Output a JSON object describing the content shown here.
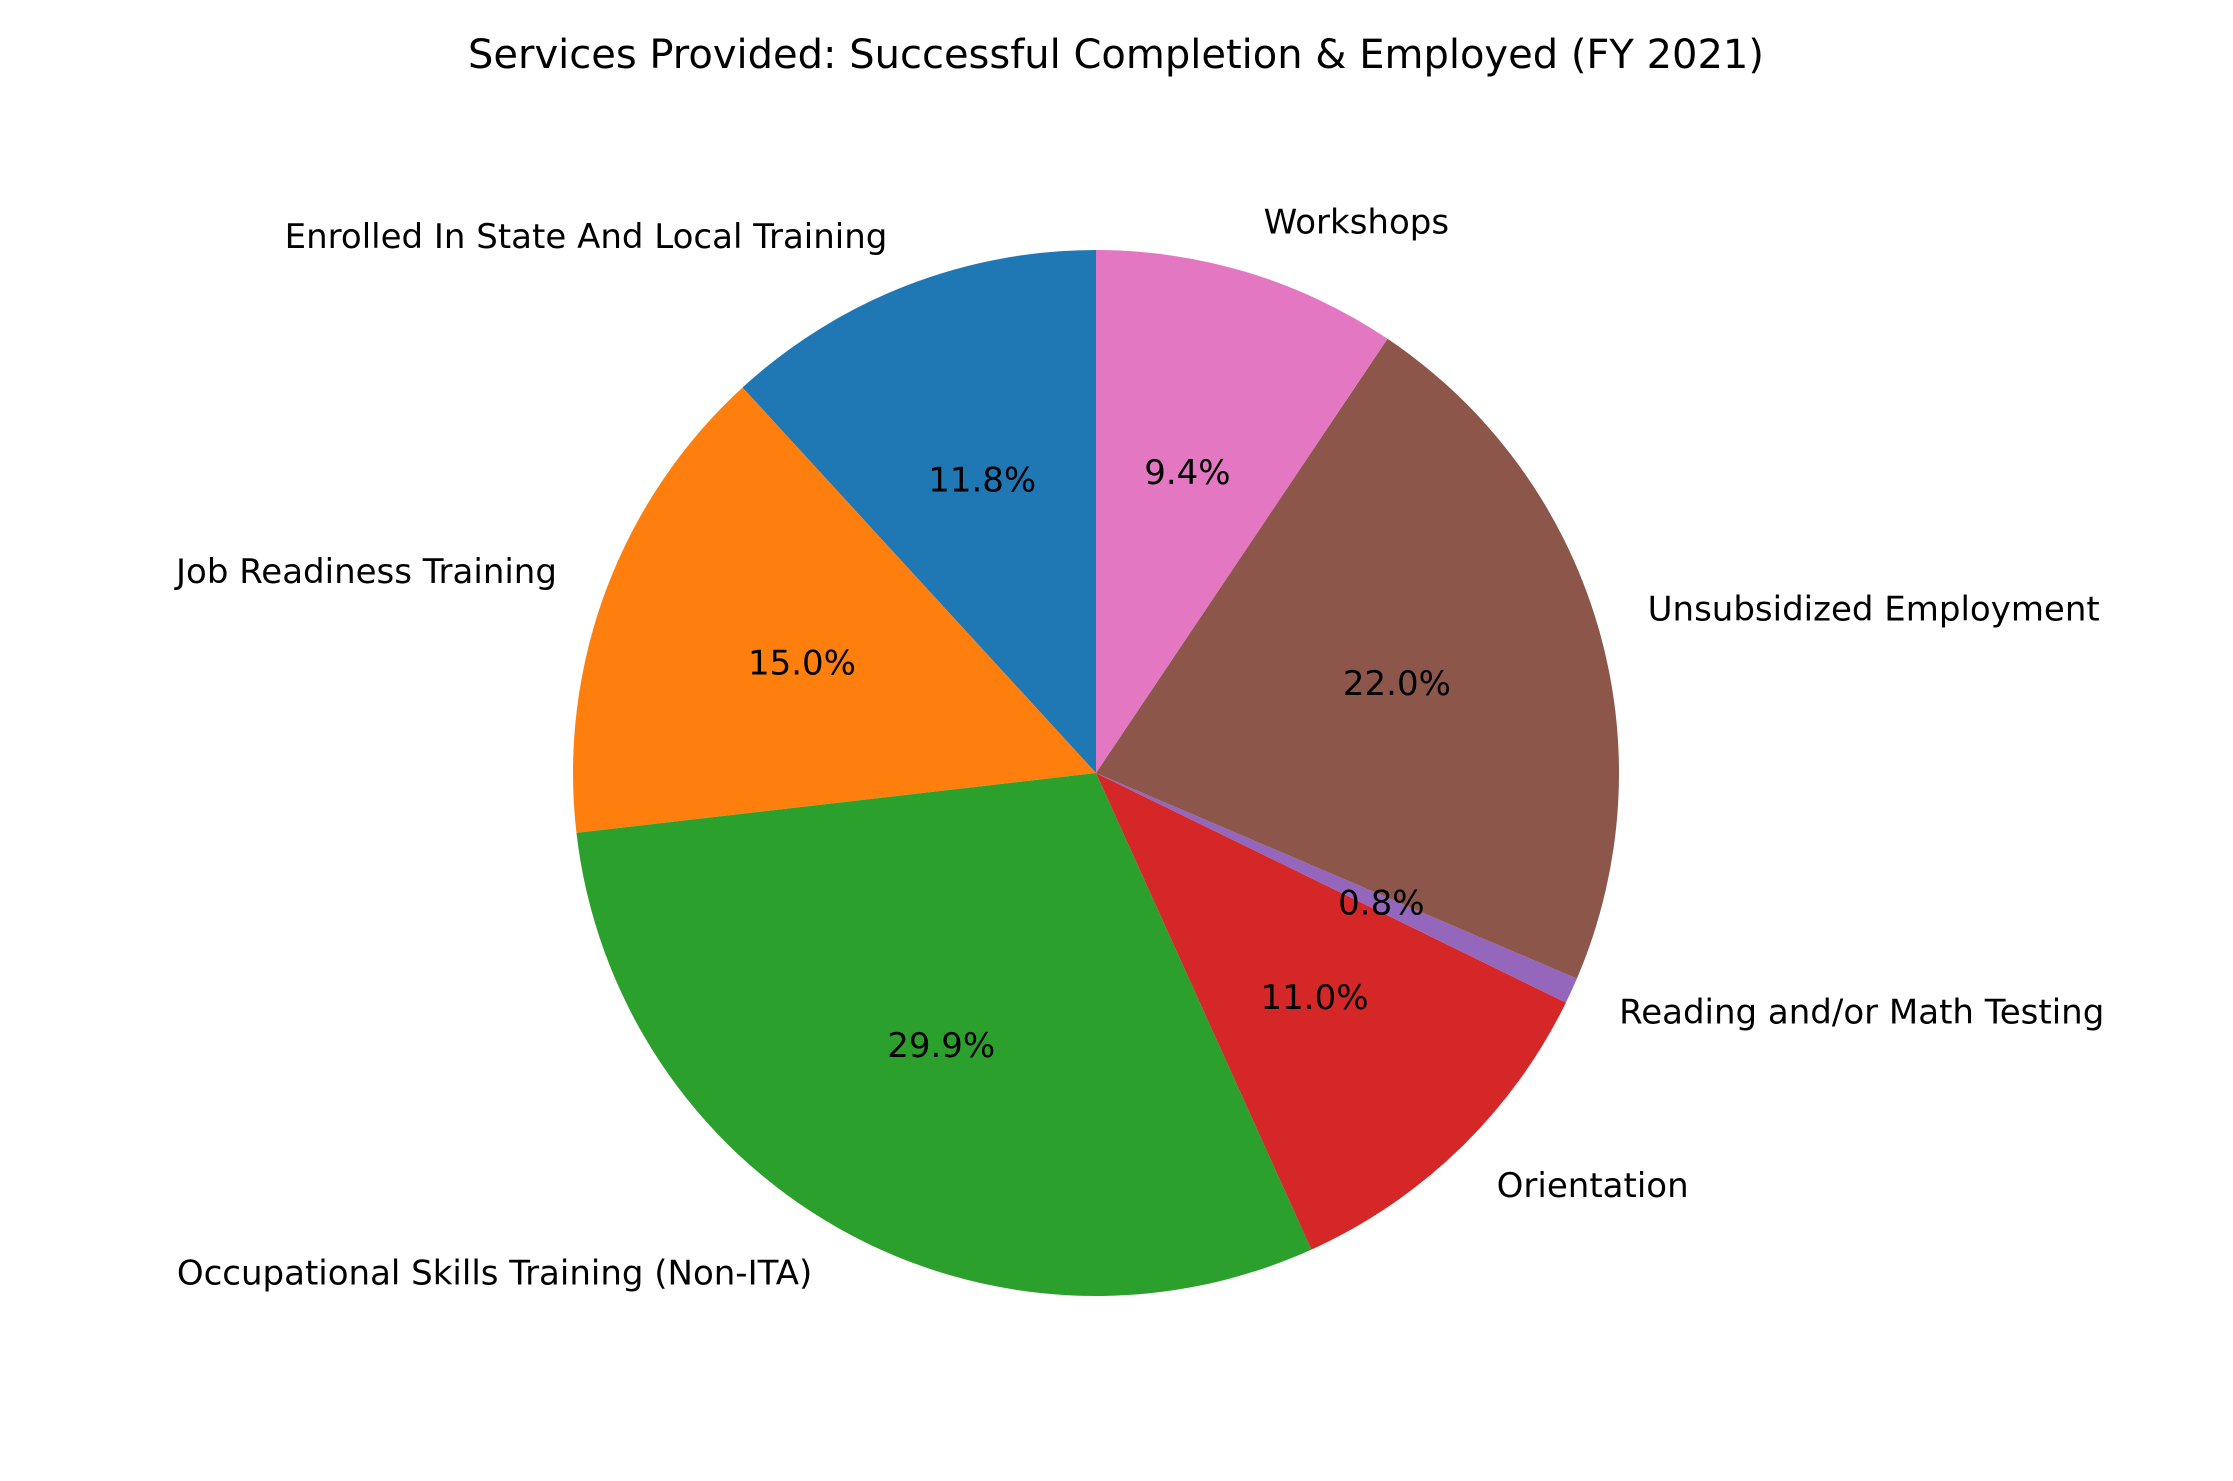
{
  "chart_data": {
    "type": "pie",
    "title": "Services Provided: Successful Completion & Employed (FY 2021)",
    "start_angle_deg": 90,
    "direction": "counterclockwise",
    "slices": [
      {
        "label": "Enrolled In State And Local Training",
        "value": 11.8,
        "pct_label": "11.8%",
        "color": "#1f77b4"
      },
      {
        "label": "Job Readiness Training",
        "value": 15.0,
        "pct_label": "15.0%",
        "color": "#ff7f0e"
      },
      {
        "label": "Occupational Skills Training (Non-ITA)",
        "value": 29.9,
        "pct_label": "29.9%",
        "color": "#2ca02c"
      },
      {
        "label": "Orientation",
        "value": 11.0,
        "pct_label": "11.0%",
        "color": "#d62728"
      },
      {
        "label": "Reading and/or Math Testing",
        "value": 0.8,
        "pct_label": "0.8%",
        "color": "#9467bd"
      },
      {
        "label": "Unsubsidized Employment",
        "value": 22.0,
        "pct_label": "22.0%",
        "color": "#8c564b"
      },
      {
        "label": "Workshops",
        "value": 9.4,
        "pct_label": "9.4%",
        "color": "#e377c2"
      }
    ]
  }
}
